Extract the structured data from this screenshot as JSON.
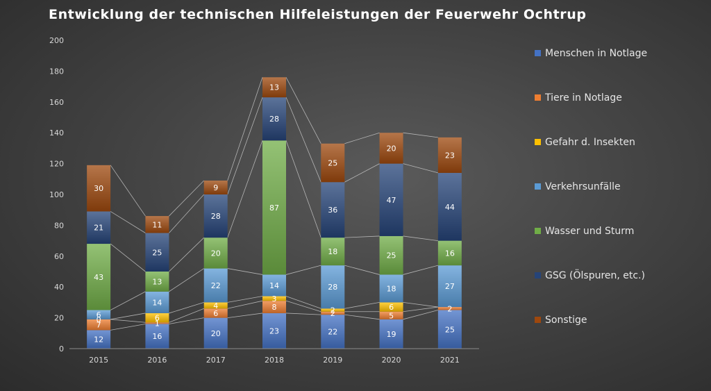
{
  "chart_data": {
    "type": "bar",
    "stacked": true,
    "title": "Entwicklung der technischen Hilfeleistungen der Feuerwehr Ochtrup",
    "xlabel": "",
    "ylabel": "",
    "ylim": [
      0,
      200
    ],
    "yticks": [
      0,
      20,
      40,
      60,
      80,
      100,
      120,
      140,
      160,
      180,
      200
    ],
    "grid": false,
    "legend_position": "right",
    "series_lines": true,
    "categories": [
      "2015",
      "2016",
      "2017",
      "2018",
      "2019",
      "2020",
      "2021"
    ],
    "series": [
      {
        "name": "Menschen in Notlage",
        "color": "#4472c4",
        "values": [
          12,
          16,
          20,
          23,
          22,
          19,
          25
        ]
      },
      {
        "name": "Tiere in Notlage",
        "color": "#ed7d31",
        "values": [
          7,
          1,
          6,
          8,
          2,
          5,
          2
        ]
      },
      {
        "name": "Gefahr d. Insekten",
        "color": "#ffc000",
        "values": [
          0,
          6,
          4,
          3,
          2,
          6,
          0
        ]
      },
      {
        "name": "Verkehrsunfälle",
        "color": "#5b9bd5",
        "values": [
          6,
          14,
          22,
          14,
          28,
          18,
          27
        ]
      },
      {
        "name": "Wasser und Sturm",
        "color": "#70ad47",
        "values": [
          43,
          13,
          20,
          87,
          18,
          25,
          16
        ]
      },
      {
        "name": "GSG (Ölspuren, etc.)",
        "color": "#264478",
        "values": [
          21,
          25,
          28,
          28,
          36,
          47,
          44
        ]
      },
      {
        "name": "Sonstige",
        "color": "#9e480e",
        "values": [
          30,
          11,
          9,
          13,
          25,
          20,
          23
        ]
      }
    ]
  }
}
